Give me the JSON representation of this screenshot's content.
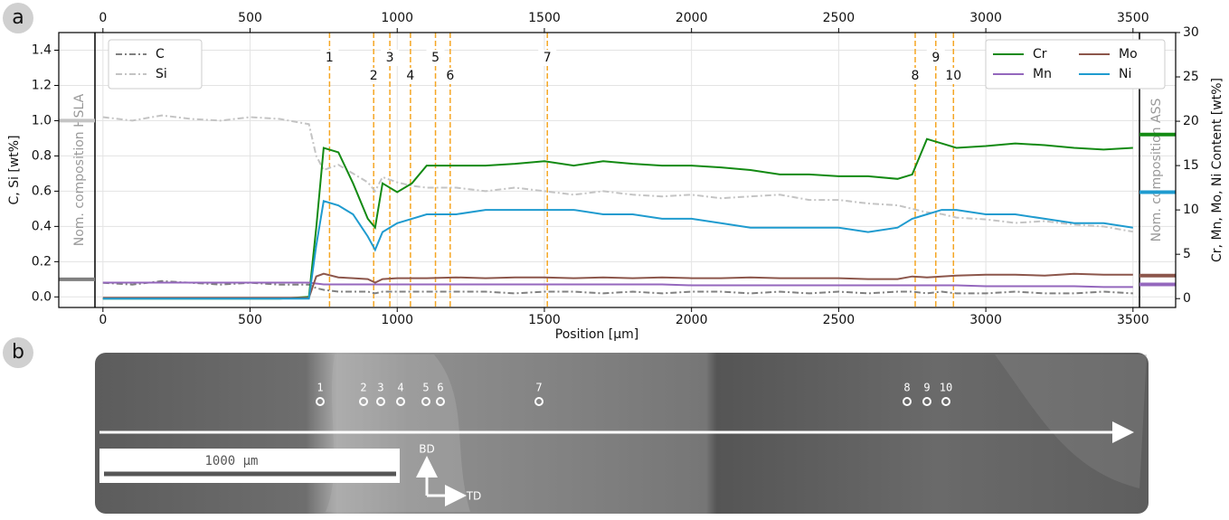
{
  "chart_data": {
    "type": "line",
    "panel_label": "a",
    "xlabel": "Position [µm]",
    "ylabel": "C, Si [wt%]",
    "y2label": "Cr, Mn, Mo, Ni Content [wt%]",
    "x": [
      0,
      100,
      200,
      300,
      400,
      500,
      600,
      700,
      725,
      750,
      800,
      850,
      900,
      925,
      950,
      1000,
      1050,
      1100,
      1200,
      1300,
      1400,
      1500,
      1600,
      1700,
      1800,
      1900,
      2000,
      2100,
      2200,
      2300,
      2400,
      2500,
      2600,
      2700,
      2750,
      2800,
      2850,
      2900,
      3000,
      3100,
      3200,
      3300,
      3400,
      3500
    ],
    "series": [
      {
        "name": "C",
        "color": "#808080",
        "linestyle": "dashdot",
        "axis": "y",
        "values": [
          0.08,
          0.07,
          0.09,
          0.08,
          0.07,
          0.08,
          0.07,
          0.07,
          0.05,
          0.04,
          0.03,
          0.03,
          0.03,
          0.02,
          0.03,
          0.03,
          0.03,
          0.03,
          0.03,
          0.03,
          0.02,
          0.03,
          0.03,
          0.02,
          0.03,
          0.02,
          0.03,
          0.03,
          0.02,
          0.03,
          0.02,
          0.03,
          0.02,
          0.03,
          0.03,
          0.02,
          0.03,
          0.02,
          0.02,
          0.03,
          0.02,
          0.02,
          0.03,
          0.02
        ]
      },
      {
        "name": "Si",
        "color": "#c4c4c4",
        "linestyle": "dashdot",
        "axis": "y",
        "values": [
          1.02,
          1.0,
          1.03,
          1.01,
          1.0,
          1.02,
          1.01,
          0.98,
          0.8,
          0.72,
          0.75,
          0.7,
          0.65,
          0.6,
          0.68,
          0.65,
          0.63,
          0.62,
          0.62,
          0.6,
          0.62,
          0.6,
          0.58,
          0.6,
          0.58,
          0.57,
          0.58,
          0.56,
          0.57,
          0.58,
          0.55,
          0.55,
          0.53,
          0.52,
          0.5,
          0.48,
          0.47,
          0.45,
          0.44,
          0.42,
          0.43,
          0.41,
          0.4,
          0.37
        ]
      },
      {
        "name": "Cr",
        "color": "#138a13",
        "linestyle": "solid",
        "axis": "y2",
        "values": [
          0,
          0,
          0,
          0,
          0,
          0,
          0,
          0.2,
          8,
          17,
          16.5,
          13,
          9,
          8,
          13,
          12,
          13,
          15,
          15,
          15,
          15.2,
          15.5,
          15,
          15.5,
          15.2,
          15,
          15,
          14.8,
          14.5,
          14,
          14,
          13.8,
          13.8,
          13.5,
          14,
          18,
          17.5,
          17,
          17.2,
          17.5,
          17.3,
          17,
          16.8,
          17
        ]
      },
      {
        "name": "Mn",
        "color": "#9467bd",
        "linestyle": "solid",
        "axis": "y2",
        "values": [
          1.8,
          1.8,
          1.8,
          1.8,
          1.8,
          1.8,
          1.8,
          1.8,
          1.7,
          1.6,
          1.6,
          1.6,
          1.6,
          1.6,
          1.6,
          1.6,
          1.6,
          1.6,
          1.6,
          1.6,
          1.6,
          1.6,
          1.6,
          1.6,
          1.6,
          1.6,
          1.5,
          1.5,
          1.5,
          1.5,
          1.5,
          1.5,
          1.5,
          1.5,
          1.5,
          1.5,
          1.5,
          1.5,
          1.4,
          1.4,
          1.4,
          1.4,
          1.3,
          1.3
        ]
      },
      {
        "name": "Mo",
        "color": "#8c564b",
        "linestyle": "solid",
        "axis": "y2",
        "values": [
          0.1,
          0.1,
          0.1,
          0.1,
          0.1,
          0.1,
          0.1,
          0.1,
          2.5,
          2.8,
          2.4,
          2.3,
          2.2,
          1.8,
          2.2,
          2.3,
          2.3,
          2.3,
          2.4,
          2.3,
          2.4,
          2.4,
          2.3,
          2.4,
          2.3,
          2.4,
          2.3,
          2.3,
          2.4,
          2.3,
          2.3,
          2.3,
          2.2,
          2.2,
          2.5,
          2.4,
          2.5,
          2.6,
          2.7,
          2.7,
          2.6,
          2.8,
          2.7,
          2.7
        ]
      },
      {
        "name": "Ni",
        "color": "#1f9bcf",
        "linestyle": "solid",
        "axis": "y2",
        "values": [
          0,
          0,
          0,
          0,
          0,
          0,
          0,
          0,
          6,
          11,
          10.5,
          9.5,
          7,
          5.5,
          7.5,
          8.5,
          9,
          9.5,
          9.5,
          10,
          10,
          10,
          10,
          9.5,
          9.5,
          9,
          9,
          8.5,
          8,
          8,
          8,
          8,
          7.5,
          8,
          9,
          9.5,
          10,
          10,
          9.5,
          9.5,
          9,
          8.5,
          8.5,
          8
        ]
      }
    ],
    "xlim": [
      -150,
      3645
    ],
    "xticks": [
      0,
      500,
      1000,
      1500,
      2000,
      2500,
      3000,
      3500
    ],
    "ylim": [
      -0.06,
      1.5
    ],
    "yticks": [
      {
        "value": 0,
        "label": "0.0"
      },
      0.2,
      0.4,
      0.6,
      0.8,
      {
        "value": 1,
        "label": "1.0"
      },
      1.2,
      1.4
    ],
    "y2lim": [
      -1,
      30
    ],
    "y2ticks": [
      0,
      5,
      10,
      15,
      20,
      25,
      30
    ],
    "grid": true,
    "legend": [
      "upper left",
      "upper right"
    ],
    "markers": {
      "color": "#f5a623",
      "x": [
        770,
        920,
        975,
        1045,
        1130,
        1180,
        1510,
        2760,
        2830,
        2890
      ],
      "labels": [
        "1",
        "2",
        "3",
        "4",
        "5",
        "6",
        "7",
        "8",
        "9",
        "10"
      ]
    },
    "nominal": [
      {
        "label": "Nom. composition HSLA",
        "axis": "y",
        "series": [
          "C",
          "Si"
        ],
        "values": [
          0.1,
          1.0
        ]
      },
      {
        "label": "Nom. composition ASS",
        "axis": "y2",
        "series": [
          "Cr",
          "Mn",
          "Mo",
          "Ni"
        ],
        "values": [
          18.5,
          1.6,
          2.6,
          12
        ]
      }
    ]
  },
  "micrograph": {
    "panel_label": "b",
    "points": [
      "1",
      "2",
      "3",
      "4",
      "5",
      "6",
      "7",
      "8",
      "9",
      "10"
    ],
    "scale_bar": "1000 µm",
    "directions": [
      "BD",
      "TD"
    ]
  }
}
